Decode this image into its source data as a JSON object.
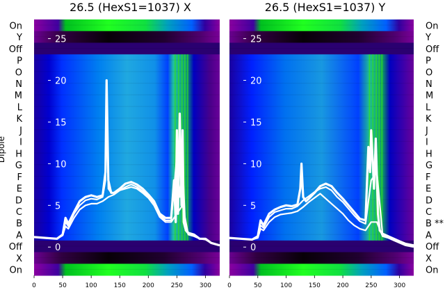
{
  "chart_data": [
    {
      "type": "heatmap",
      "title": "26.5 (HexS1=1037) X",
      "ylabel": "Dipole",
      "row_labels": [
        "On",
        "Y",
        "Off",
        "P",
        "O",
        "N",
        "M",
        "L",
        "K",
        "J",
        "I",
        "H",
        "G",
        "F",
        "E",
        "D",
        "C",
        "B",
        "A",
        "Off",
        "X",
        "On"
      ],
      "x_ticks": [
        0,
        50,
        100,
        150,
        200,
        250,
        300
      ],
      "xlim": [
        0,
        325
      ],
      "inner_ticks": [
        25,
        20,
        15,
        10,
        5,
        0
      ],
      "inner_ylim": [
        -3.4,
        27.3
      ],
      "overlay_series": [
        {
          "name": "trace 1",
          "x": [
            0,
            20,
            40,
            50,
            55,
            60,
            70,
            80,
            90,
            100,
            110,
            120,
            125,
            127,
            130,
            135,
            140,
            150,
            160,
            170,
            180,
            190,
            200,
            210,
            220,
            230,
            240,
            245,
            248,
            250,
            252,
            255,
            258,
            260,
            262,
            265,
            270,
            280,
            290,
            300,
            310,
            325
          ],
          "y": [
            1.2,
            1.1,
            1.0,
            1.5,
            3.5,
            2.8,
            4.2,
            5.5,
            6.0,
            6.2,
            6.0,
            6.2,
            9,
            20,
            8,
            6.5,
            6.5,
            7,
            7.6,
            7.8,
            7.5,
            7,
            6.3,
            5.5,
            4,
            3.5,
            3.5,
            8,
            3,
            14,
            4,
            16,
            5,
            14,
            3,
            2.2,
            1.7,
            1.5,
            1.0,
            1.0,
            0.5,
            0.2
          ]
        },
        {
          "name": "trace 2",
          "x": [
            0,
            20,
            40,
            50,
            55,
            60,
            70,
            80,
            90,
            100,
            110,
            120,
            125,
            127,
            130,
            135,
            140,
            150,
            160,
            170,
            180,
            190,
            200,
            210,
            220,
            230,
            240,
            245,
            250,
            255,
            260,
            265,
            270,
            280,
            290,
            300,
            310,
            325
          ],
          "y": [
            1.2,
            1.1,
            1.0,
            1.5,
            3,
            2.5,
            4.0,
            5.0,
            5.6,
            5.8,
            5.7,
            6.0,
            8,
            18,
            7,
            6.5,
            6.5,
            6.8,
            7.2,
            7.5,
            7.2,
            6.7,
            6.1,
            5.3,
            3.8,
            3.2,
            3.2,
            7,
            11,
            6,
            10,
            2,
            1.6,
            1.4,
            1.0,
            1.0,
            0.5,
            0.2
          ]
        },
        {
          "name": "trace 3",
          "x": [
            0,
            20,
            40,
            50,
            55,
            60,
            70,
            80,
            90,
            100,
            110,
            120,
            130,
            140,
            150,
            160,
            170,
            180,
            190,
            200,
            210,
            220,
            230,
            240,
            250,
            260,
            270,
            280,
            290,
            300,
            310,
            325
          ],
          "y": [
            1.2,
            1.1,
            1.0,
            1.4,
            2.5,
            2.2,
            3.5,
            4.5,
            5.0,
            5.2,
            5.2,
            5.5,
            6.0,
            6.3,
            6.8,
            7.0,
            7.2,
            7.0,
            6.5,
            5.9,
            5.0,
            3.6,
            3.0,
            3.0,
            4,
            5,
            1.5,
            1.3,
            1.0,
            0.9,
            0.5,
            0.2
          ]
        }
      ]
    },
    {
      "type": "heatmap",
      "title": "26.5 (HexS1=1037) Y",
      "row_labels": [
        "On",
        "Y",
        "Off",
        "P",
        "O",
        "N",
        "M",
        "L",
        "K",
        "J",
        "I",
        "H",
        "G",
        "F",
        "E",
        "D",
        "C",
        "B **",
        "A",
        "Off",
        "X",
        "On"
      ],
      "x_ticks": [
        0,
        50,
        100,
        150,
        200,
        250,
        300
      ],
      "xlim": [
        0,
        325
      ],
      "inner_ticks": [
        25,
        20,
        15,
        10,
        5,
        0
      ],
      "inner_ylim": [
        -3.4,
        27.3
      ],
      "overlay_series": [
        {
          "name": "trace 1",
          "x": [
            0,
            20,
            40,
            50,
            55,
            60,
            70,
            80,
            90,
            100,
            110,
            120,
            125,
            127,
            130,
            135,
            140,
            150,
            160,
            170,
            180,
            190,
            200,
            210,
            220,
            230,
            240,
            245,
            248,
            250,
            255,
            258,
            262,
            265,
            270,
            280,
            290,
            300,
            310,
            325
          ],
          "y": [
            1.1,
            1.0,
            0.9,
            1.3,
            3.2,
            2.6,
            4.0,
            4.5,
            4.8,
            5.0,
            4.9,
            5.1,
            7,
            10,
            6,
            5.5,
            5.8,
            6.5,
            7.3,
            7.6,
            7.3,
            6.5,
            5.8,
            5.0,
            4.2,
            3.4,
            3.2,
            12,
            9,
            14,
            7,
            13,
            4,
            2.0,
            1.6,
            1.3,
            1.0,
            0.7,
            0.4,
            0.2
          ]
        },
        {
          "name": "trace 2",
          "x": [
            0,
            20,
            40,
            50,
            55,
            60,
            70,
            80,
            90,
            100,
            110,
            120,
            130,
            140,
            150,
            160,
            170,
            180,
            190,
            200,
            210,
            220,
            230,
            240,
            250,
            260,
            270,
            280,
            290,
            300,
            310,
            325
          ],
          "y": [
            1.1,
            1.0,
            0.9,
            1.2,
            2.6,
            2.3,
            3.6,
            4.2,
            4.4,
            4.6,
            4.6,
            4.9,
            5.6,
            6.1,
            6.6,
            7.0,
            7.2,
            6.8,
            6.0,
            5.4,
            4.6,
            3.8,
            3.1,
            2.8,
            8,
            9,
            1.5,
            1.2,
            0.9,
            0.6,
            0.3,
            0.1
          ]
        },
        {
          "name": "trace 3",
          "x": [
            0,
            20,
            40,
            50,
            55,
            60,
            70,
            80,
            90,
            100,
            110,
            120,
            130,
            140,
            150,
            160,
            170,
            180,
            190,
            200,
            210,
            220,
            230,
            240,
            250,
            260,
            270,
            280,
            290,
            300,
            310,
            325
          ],
          "y": [
            1.1,
            1.0,
            0.9,
            1.1,
            2.2,
            2.0,
            3.0,
            3.6,
            3.9,
            4.0,
            4.1,
            4.3,
            4.8,
            5.4,
            5.9,
            6.4,
            5.8,
            5.2,
            4.6,
            4.0,
            3.2,
            2.6,
            2.2,
            2.0,
            3,
            3,
            1.3,
            1.1,
            0.8,
            0.5,
            0.2,
            0.0
          ]
        }
      ]
    }
  ]
}
